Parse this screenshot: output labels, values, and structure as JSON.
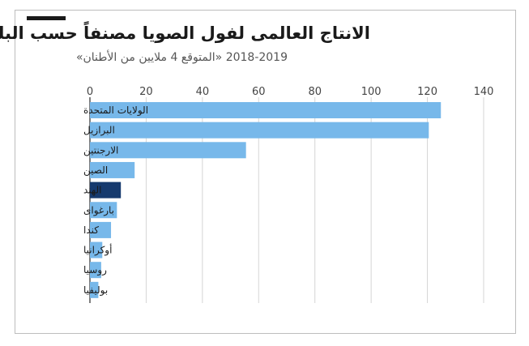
{
  "title": "الانتاج العالمى لفول الصويا مصنفاً حسب البلد",
  "subtitle": "2018-2019 «المتوقع 4 ملايين من الأطنان»",
  "colors": {
    "bar": "#77b8ea",
    "highlight": "#163a6e",
    "axis": "#555555",
    "grid": "#d6d6d6"
  },
  "chart_data": {
    "type": "bar",
    "orientation": "horizontal",
    "categories": [
      "الولايات المتحدة",
      "البرازيل",
      "الارجنتين",
      "الصين",
      "الهند",
      "بارغواى",
      "كندا",
      "أوكرانيا",
      "روسيا",
      "بوليفيا"
    ],
    "values": [
      124.8,
      120.5,
      55.5,
      15.9,
      11.0,
      9.6,
      7.5,
      4.4,
      4.0,
      3.0
    ],
    "highlight_category": "الهند",
    "xticks": [
      0,
      20,
      40,
      60,
      80,
      100,
      120,
      140
    ],
    "xlim": [
      0,
      140
    ],
    "tick_position": "top",
    "grid": true
  }
}
